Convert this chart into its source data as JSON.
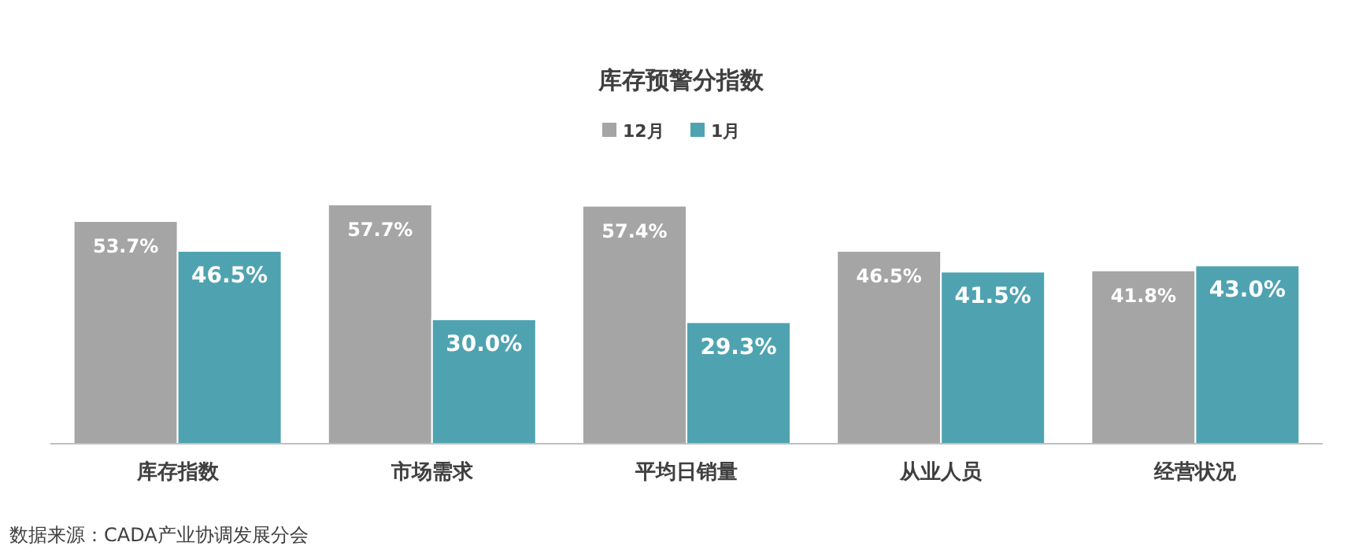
{
  "chart_data": {
    "type": "bar",
    "title": "库存预警分指数",
    "categories": [
      "库存指数",
      "市场需求",
      "平均日销量",
      "从业人员",
      "经营状况"
    ],
    "series": [
      {
        "name": "12月",
        "color": "#a5a5a5",
        "values": [
          53.7,
          57.7,
          57.4,
          46.5,
          41.8
        ],
        "value_labels": [
          "53.7%",
          "57.7%",
          "57.4%",
          "46.5%",
          "41.8%"
        ]
      },
      {
        "name": "1月",
        "color": "#4fa3b1",
        "values": [
          46.5,
          30.0,
          29.3,
          41.5,
          43.0
        ],
        "value_labels": [
          "46.5%",
          "30.0%",
          "29.3%",
          "41.5%",
          "43.0%"
        ]
      }
    ],
    "legend": "top",
    "grid": false,
    "annotations": [
      "数据来源：CADA产业协调发展分会"
    ]
  }
}
